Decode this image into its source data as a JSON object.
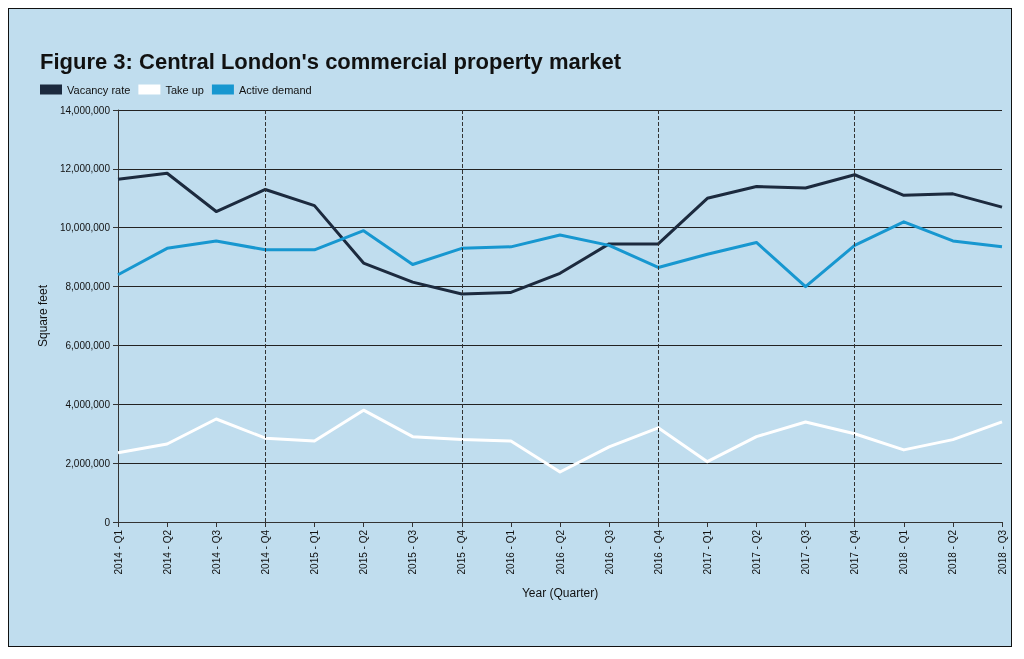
{
  "chart_data": {
    "type": "line",
    "title": "Figure 3: Central London's commercial property market",
    "xlabel": "Year (Quarter)",
    "ylabel": "Square feet",
    "categories": [
      "2014 - Q1",
      "2014 - Q2",
      "2014 - Q3",
      "2014 - Q4",
      "2015 - Q1",
      "2015 - Q2",
      "2015 - Q3",
      "2015 - Q4",
      "2016 - Q1",
      "2016 - Q2",
      "2016 - Q3",
      "2016 - Q4",
      "2017 - Q1",
      "2017 - Q2",
      "2017 - Q3",
      "2017 - Q4",
      "2018 - Q1",
      "2018 - Q2",
      "2018 - Q3"
    ],
    "series": [
      {
        "name": "Vacancy rate",
        "color": "#1c2a3e",
        "values": [
          11650000,
          11850000,
          10550000,
          11300000,
          10750000,
          8800000,
          8150000,
          7750000,
          7800000,
          8450000,
          9450000,
          9450000,
          11000000,
          11400000,
          11350000,
          11800000,
          11100000,
          11150000,
          10700000
        ]
      },
      {
        "name": "Take up",
        "color": "#ffffff",
        "values": [
          2350000,
          2650000,
          3500000,
          2850000,
          2750000,
          3800000,
          2900000,
          2800000,
          2750000,
          1700000,
          2550000,
          3200000,
          2050000,
          2900000,
          3400000,
          3000000,
          2450000,
          2800000,
          3400000
        ]
      },
      {
        "name": "Active demand",
        "color": "#1797d0",
        "values": [
          8400000,
          9300000,
          9550000,
          9250000,
          9250000,
          9900000,
          8750000,
          9300000,
          9350000,
          9750000,
          9400000,
          8650000,
          9100000,
          9500000,
          8000000,
          9400000,
          10200000,
          9550000,
          9350000
        ]
      }
    ],
    "ylim": [
      0,
      14000000
    ],
    "yticks": [
      0,
      {
        "value": 2000000,
        "label": "2,000,000"
      },
      {
        "value": 4000000,
        "label": "4,000,000"
      },
      {
        "value": 6000000,
        "label": "6,000,000"
      },
      {
        "value": 8000000,
        "label": "8,000,000"
      },
      {
        "value": 10000000,
        "label": "10,000,000"
      },
      {
        "value": 12000000,
        "label": "12,000,000"
      },
      {
        "value": 14000000,
        "label": "14,000,000"
      }
    ],
    "ref_lines": [
      {
        "axis": "x",
        "value": "2014 - Q4",
        "line_style": "dashed"
      },
      {
        "axis": "x",
        "value": "2015 - Q4",
        "line_style": "dashed"
      },
      {
        "axis": "x",
        "value": "2016 - Q4",
        "line_style": "dashed"
      },
      {
        "axis": "x",
        "value": "2017 - Q4",
        "line_style": "dashed"
      }
    ],
    "grid": "y",
    "legend": "top left",
    "marker": "none",
    "line_style": "solid"
  }
}
